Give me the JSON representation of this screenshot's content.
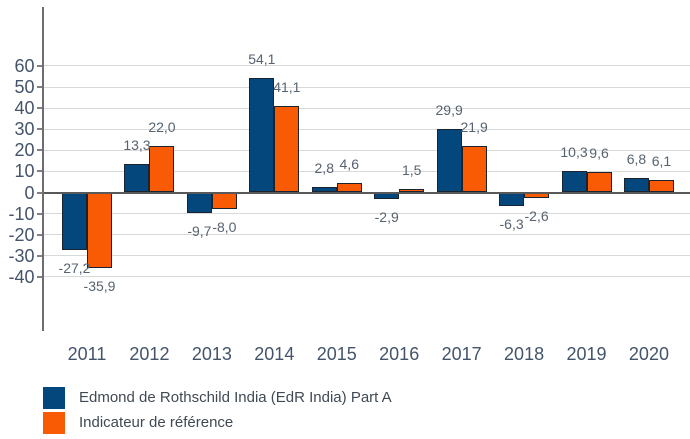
{
  "chart_data": {
    "type": "bar",
    "title": "",
    "categories": [
      "2011",
      "2012",
      "2013",
      "2014",
      "2015",
      "2016",
      "2017",
      "2018",
      "2019",
      "2020"
    ],
    "series": [
      {
        "name": "Edmond de Rothschild India (EdR India) Part A",
        "color": "#04477D",
        "values": [
          -27.2,
          13.3,
          -9.7,
          54.1,
          2.8,
          -2.9,
          29.9,
          -6.3,
          10.3,
          6.8
        ],
        "value_labels": [
          "-27,2",
          "13,3",
          "-9,7",
          "54,1",
          "2,8",
          "-2,9",
          "29,9",
          "-6,3",
          "10,3",
          "6,8"
        ]
      },
      {
        "name": "Indicateur de référence",
        "color": "#F95B05",
        "values": [
          -35.9,
          22.0,
          -8.0,
          41.1,
          4.6,
          1.5,
          21.9,
          -2.6,
          9.6,
          6.1
        ],
        "value_labels": [
          "-35,9",
          "22,0",
          "-8,0",
          "41,1",
          "4,6",
          "1,5",
          "21,9",
          "-2,6",
          "9,6",
          "6,1"
        ]
      }
    ],
    "y_axis": {
      "ticks": [
        60,
        50,
        40,
        30,
        20,
        10,
        0,
        -10,
        -20,
        -30,
        -40
      ],
      "tick_labels": [
        "60",
        "50",
        "40",
        "30",
        "20",
        "10",
        "0",
        "-10",
        "-20",
        "-30",
        "-40"
      ],
      "range_displayed": [
        -40,
        60
      ]
    },
    "grid": true,
    "legend_position": "bottom-left",
    "colors": {
      "gridline": "#D9D9D9",
      "zero_line": "#595959",
      "axis_line": "#6E6E6E",
      "tick": "#808080",
      "axis_label": "#44546A",
      "value_label": "#566370",
      "legend_text": "#404A54",
      "bar_border": "#1a2430"
    }
  }
}
